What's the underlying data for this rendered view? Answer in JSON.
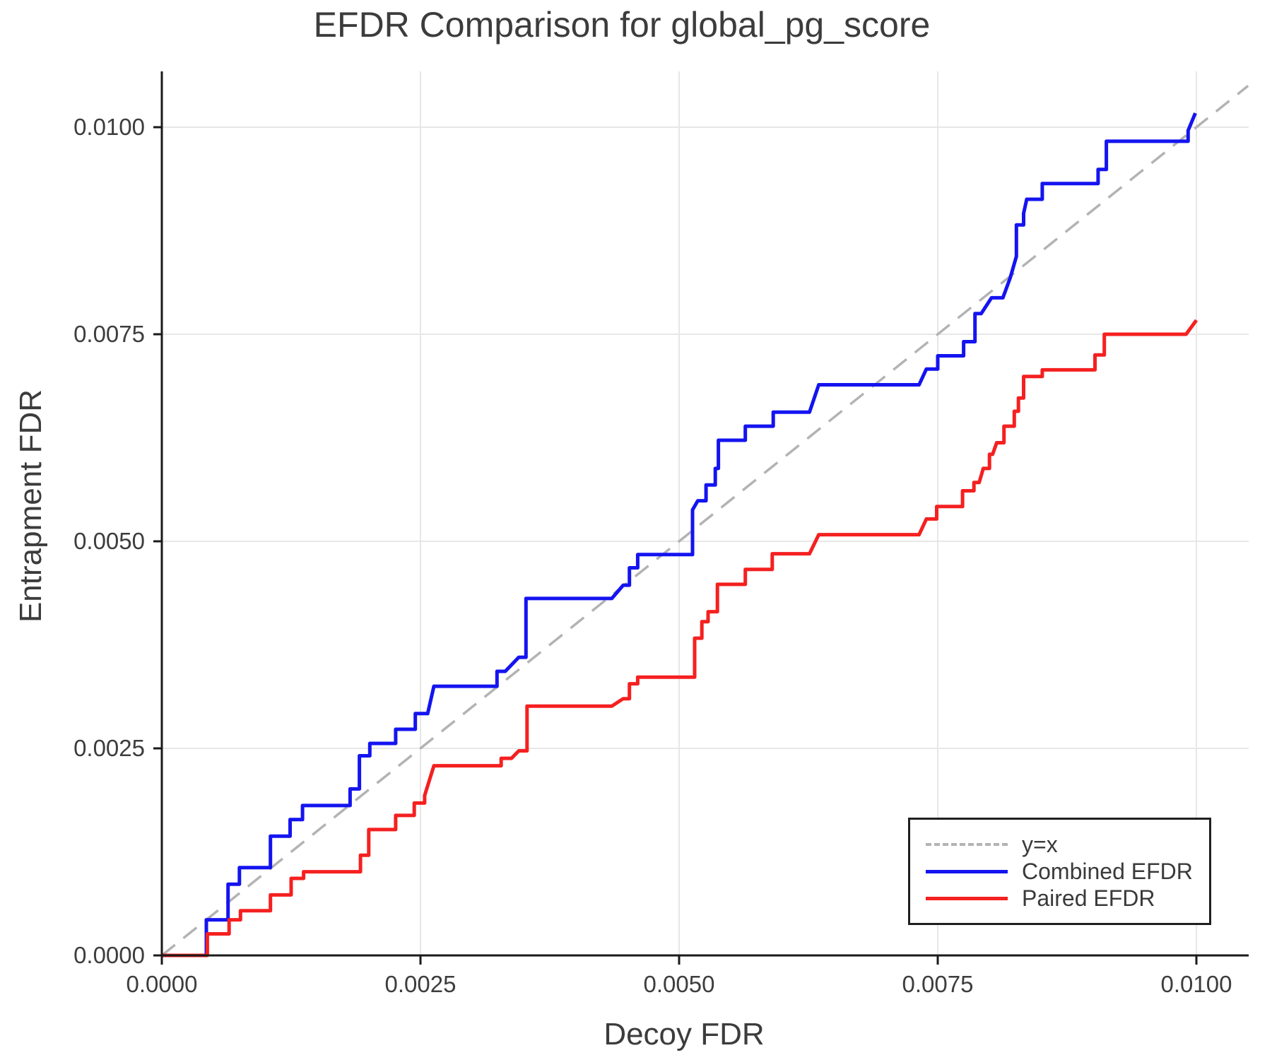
{
  "chart_data": {
    "type": "line",
    "title": "EFDR Comparison for global_pg_score",
    "xlabel": "Decoy FDR",
    "ylabel": "Entrapment FDR",
    "xlim": [
      0.0,
      0.0105
    ],
    "ylim": [
      0.0,
      0.01067
    ],
    "grid": true,
    "legend_position": "lower right",
    "x_ticks": {
      "values": [
        0.0,
        0.0025,
        0.005,
        0.0075,
        0.01
      ],
      "labels": [
        "0.0000",
        "0.0025",
        "0.0050",
        "0.0075",
        "0.0100"
      ]
    },
    "y_ticks": {
      "values": [
        0.0,
        0.0025,
        0.005,
        0.0075,
        0.01
      ],
      "labels": [
        "0.0000",
        "0.0025",
        "0.0050",
        "0.0075",
        "0.0100"
      ]
    },
    "series": [
      {
        "name": "y=x",
        "color": "#b3b3b3",
        "style": "dashed",
        "width": 3.5,
        "points": [
          [
            0.0,
            0.0
          ],
          [
            0.0105,
            0.0105
          ]
        ]
      },
      {
        "name": "Combined EFDR",
        "color": "#1414f0",
        "style": "solid",
        "width": 5,
        "points": [
          [
            0.0,
            0.0
          ],
          [
            0.00043,
            0.0
          ],
          [
            0.00043,
            0.00043
          ],
          [
            0.00064,
            0.00043
          ],
          [
            0.00064,
            0.00086
          ],
          [
            0.00075,
            0.00086
          ],
          [
            0.00075,
            0.00106
          ],
          [
            0.00105,
            0.00106
          ],
          [
            0.00105,
            0.00144
          ],
          [
            0.00124,
            0.00144
          ],
          [
            0.00124,
            0.00164
          ],
          [
            0.00136,
            0.00164
          ],
          [
            0.00136,
            0.00181
          ],
          [
            0.00182,
            0.00181
          ],
          [
            0.00182,
            0.00201
          ],
          [
            0.00191,
            0.00201
          ],
          [
            0.00191,
            0.00241
          ],
          [
            0.00201,
            0.00241
          ],
          [
            0.00201,
            0.00256
          ],
          [
            0.00226,
            0.00256
          ],
          [
            0.00226,
            0.00273
          ],
          [
            0.00245,
            0.00273
          ],
          [
            0.00245,
            0.00292
          ],
          [
            0.00257,
            0.00292
          ],
          [
            0.00263,
            0.00325
          ],
          [
            0.00324,
            0.00325
          ],
          [
            0.00324,
            0.00343
          ],
          [
            0.00332,
            0.00343
          ],
          [
            0.00345,
            0.0036
          ],
          [
            0.00352,
            0.0036
          ],
          [
            0.00352,
            0.00431
          ],
          [
            0.00435,
            0.00431
          ],
          [
            0.00446,
            0.00447
          ],
          [
            0.00452,
            0.00447
          ],
          [
            0.00452,
            0.00468
          ],
          [
            0.0046,
            0.00468
          ],
          [
            0.0046,
            0.00484
          ],
          [
            0.00513,
            0.00484
          ],
          [
            0.00513,
            0.00538
          ],
          [
            0.00518,
            0.00549
          ],
          [
            0.00526,
            0.00549
          ],
          [
            0.00526,
            0.00568
          ],
          [
            0.00535,
            0.00568
          ],
          [
            0.00535,
            0.00588
          ],
          [
            0.00538,
            0.00588
          ],
          [
            0.00538,
            0.00622
          ],
          [
            0.00564,
            0.00622
          ],
          [
            0.00564,
            0.00639
          ],
          [
            0.00591,
            0.00639
          ],
          [
            0.00591,
            0.00656
          ],
          [
            0.00626,
            0.00656
          ],
          [
            0.00635,
            0.00689
          ],
          [
            0.00732,
            0.00689
          ],
          [
            0.00739,
            0.00708
          ],
          [
            0.0075,
            0.00708
          ],
          [
            0.0075,
            0.00724
          ],
          [
            0.00775,
            0.00724
          ],
          [
            0.00775,
            0.00741
          ],
          [
            0.00786,
            0.00741
          ],
          [
            0.00786,
            0.00775
          ],
          [
            0.00792,
            0.00775
          ],
          [
            0.00802,
            0.00794
          ],
          [
            0.00813,
            0.00794
          ],
          [
            0.0082,
            0.00818
          ],
          [
            0.00826,
            0.00844
          ],
          [
            0.00826,
            0.00882
          ],
          [
            0.00833,
            0.00882
          ],
          [
            0.00833,
            0.00896
          ],
          [
            0.00836,
            0.00913
          ],
          [
            0.00851,
            0.00913
          ],
          [
            0.00851,
            0.00932
          ],
          [
            0.00905,
            0.00932
          ],
          [
            0.00905,
            0.00949
          ],
          [
            0.00913,
            0.00949
          ],
          [
            0.00913,
            0.00983
          ],
          [
            0.00992,
            0.00983
          ],
          [
            0.00992,
            0.00996
          ],
          [
            0.00999,
            0.01017
          ]
        ]
      },
      {
        "name": "Paired EFDR",
        "color": "#f52020",
        "style": "solid",
        "width": 5,
        "points": [
          [
            0.0,
            0.0
          ],
          [
            0.00044,
            0.0
          ],
          [
            0.00044,
            0.00026
          ],
          [
            0.00065,
            0.00026
          ],
          [
            0.00065,
            0.00043
          ],
          [
            0.00076,
            0.00043
          ],
          [
            0.00076,
            0.00054
          ],
          [
            0.00105,
            0.00054
          ],
          [
            0.00105,
            0.00073
          ],
          [
            0.00125,
            0.00073
          ],
          [
            0.00125,
            0.00093
          ],
          [
            0.00137,
            0.00093
          ],
          [
            0.00137,
            0.00101
          ],
          [
            0.00192,
            0.00101
          ],
          [
            0.00192,
            0.00121
          ],
          [
            0.002,
            0.00121
          ],
          [
            0.002,
            0.00152
          ],
          [
            0.00226,
            0.00152
          ],
          [
            0.00226,
            0.00169
          ],
          [
            0.00244,
            0.00169
          ],
          [
            0.00244,
            0.00184
          ],
          [
            0.00254,
            0.00184
          ],
          [
            0.00254,
            0.00193
          ],
          [
            0.00263,
            0.00229
          ],
          [
            0.00328,
            0.00229
          ],
          [
            0.00328,
            0.00238
          ],
          [
            0.00338,
            0.00238
          ],
          [
            0.00345,
            0.00247
          ],
          [
            0.00353,
            0.00247
          ],
          [
            0.00353,
            0.00301
          ],
          [
            0.00435,
            0.00301
          ],
          [
            0.00446,
            0.0031
          ],
          [
            0.00452,
            0.0031
          ],
          [
            0.00452,
            0.00328
          ],
          [
            0.0046,
            0.00328
          ],
          [
            0.0046,
            0.00336
          ],
          [
            0.00515,
            0.00336
          ],
          [
            0.00515,
            0.00383
          ],
          [
            0.00522,
            0.00383
          ],
          [
            0.00522,
            0.00403
          ],
          [
            0.00528,
            0.00403
          ],
          [
            0.00528,
            0.00415
          ],
          [
            0.00537,
            0.00415
          ],
          [
            0.00537,
            0.00448
          ],
          [
            0.00564,
            0.00448
          ],
          [
            0.00564,
            0.00466
          ],
          [
            0.0059,
            0.00466
          ],
          [
            0.0059,
            0.00485
          ],
          [
            0.00626,
            0.00485
          ],
          [
            0.00635,
            0.00508
          ],
          [
            0.00732,
            0.00508
          ],
          [
            0.00739,
            0.00527
          ],
          [
            0.00749,
            0.00527
          ],
          [
            0.00749,
            0.00542
          ],
          [
            0.00774,
            0.00542
          ],
          [
            0.00774,
            0.00561
          ],
          [
            0.00785,
            0.00561
          ],
          [
            0.00785,
            0.00571
          ],
          [
            0.0079,
            0.00571
          ],
          [
            0.00794,
            0.00588
          ],
          [
            0.008,
            0.00588
          ],
          [
            0.008,
            0.00605
          ],
          [
            0.00803,
            0.00605
          ],
          [
            0.00807,
            0.00619
          ],
          [
            0.00814,
            0.00619
          ],
          [
            0.00814,
            0.00639
          ],
          [
            0.00824,
            0.00639
          ],
          [
            0.00824,
            0.00657
          ],
          [
            0.00828,
            0.00657
          ],
          [
            0.00828,
            0.00673
          ],
          [
            0.00833,
            0.00673
          ],
          [
            0.00833,
            0.00699
          ],
          [
            0.00851,
            0.00699
          ],
          [
            0.00851,
            0.00707
          ],
          [
            0.00902,
            0.00707
          ],
          [
            0.00902,
            0.00725
          ],
          [
            0.00911,
            0.00725
          ],
          [
            0.00911,
            0.0075
          ],
          [
            0.0099,
            0.0075
          ],
          [
            0.01,
            0.00767
          ]
        ]
      }
    ]
  },
  "legend": {
    "items": [
      {
        "label": "y=x"
      },
      {
        "label": "Combined EFDR"
      },
      {
        "label": "Paired EFDR"
      }
    ]
  },
  "colors": {
    "spine": "#1a1a1a",
    "grid": "#e7e7e7",
    "text": "#3c3c3c"
  }
}
